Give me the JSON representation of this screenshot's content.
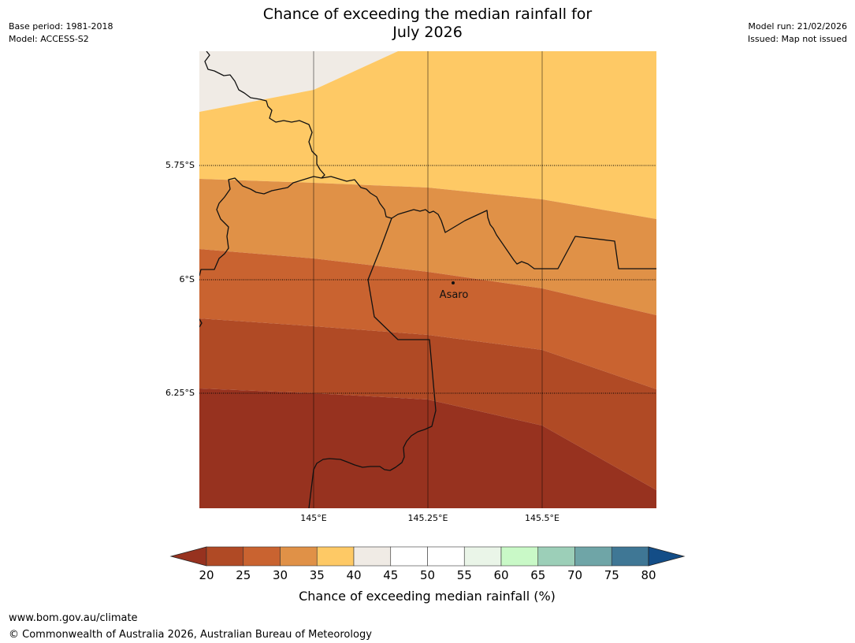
{
  "header": {
    "title_line1": "Chance of exceeding the median rainfall for",
    "title_line2": "July 2026",
    "base_period": "Base period: 1981-2018",
    "model": "Model: ACCESS-S2",
    "model_run": "Model run: 21/02/2026",
    "issued": "Issued: Map not issued"
  },
  "map": {
    "extent": {
      "lon_min": 144.855,
      "lon_max": 145.65,
      "lat_min": -6.5,
      "lat_max": -5.65
    },
    "lat_gridlines": [
      {
        "value": -5.75,
        "label": "5.75°S"
      },
      {
        "value": -6.0,
        "label": "6°S"
      },
      {
        "value": -6.25,
        "label": "6.25°S"
      }
    ],
    "lon_gridlines": [
      {
        "value": 145.0,
        "label": "145°E"
      },
      {
        "value": 145.25,
        "label": "145.25°E"
      },
      {
        "value": 145.5,
        "label": "145.5°E"
      }
    ],
    "places": [
      {
        "name": "Asaro",
        "lon": 145.3,
        "lat": -6.01
      }
    ],
    "bands": [
      {
        "range": "40-45",
        "color": "#f0ebe5"
      },
      {
        "range": "35-40",
        "color": "#fec965"
      },
      {
        "range": "30-35",
        "color": "#e09147"
      },
      {
        "range": "25-30",
        "color": "#c96330"
      },
      {
        "range": "20-25",
        "color": "#b04a25"
      },
      {
        "range": "<20",
        "color": "#97321f"
      }
    ]
  },
  "colorbar": {
    "label": "Chance of exceeding median rainfall (%)",
    "ticks": [
      "20",
      "25",
      "30",
      "35",
      "40",
      "45",
      "50",
      "55",
      "60",
      "65",
      "70",
      "75",
      "80"
    ],
    "under_color": "#97321f",
    "over_color": "#134d87",
    "colors": [
      "#b04a25",
      "#c96330",
      "#e09147",
      "#fec965",
      "#f0ebe5",
      "#ffffff",
      "#ffffff",
      "#eaf5e8",
      "#c9f9c7",
      "#9ccfb8",
      "#6fa5a7",
      "#3f7795"
    ]
  },
  "footer": {
    "url": "www.bom.gov.au/climate",
    "copyright": "© Commonwealth of Australia 2026, Australian Bureau of Meteorology"
  }
}
